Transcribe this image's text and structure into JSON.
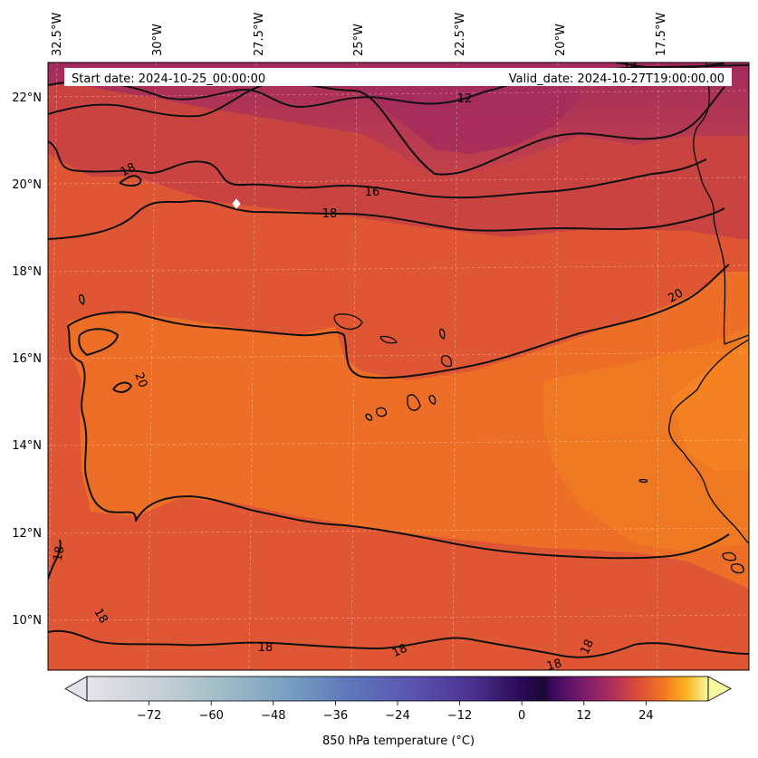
{
  "header": {
    "start_date": "Start date: 2024-10-25_00:00:00",
    "valid_date": "Valid_date: 2024-10-27T19:00:00.00"
  },
  "map": {
    "lon_labels": [
      "32.5°W",
      "30°W",
      "27.5°W",
      "25°W",
      "22.5°W",
      "20°W",
      "17.5°W"
    ],
    "lat_labels": [
      "22°N",
      "20°N",
      "18°N",
      "16°N",
      "14°N",
      "12°N",
      "10°N"
    ],
    "contour_labels": [
      "12",
      "14",
      "16",
      "18",
      "18",
      "18",
      "20",
      "20",
      "18",
      "18",
      "18",
      "18",
      "18",
      "18"
    ]
  },
  "colorbar": {
    "ticks": [
      "−72",
      "−60",
      "−48",
      "−36",
      "−24",
      "−12",
      "0",
      "12",
      "24"
    ],
    "label": "850 hPa temperature ($^\\circ$C)",
    "label_display": "850 hPa temperature (°C)",
    "colormap": "inferno-like with grey-blue-purple cold end",
    "range": [
      -84,
      36
    ]
  },
  "colors": {
    "warm_orange": "#f07a24",
    "red_orange": "#de5633",
    "magenta": "#ae3157",
    "purple_red": "#c24745"
  },
  "icons": {
    "marker": "white-diamond-marker"
  }
}
